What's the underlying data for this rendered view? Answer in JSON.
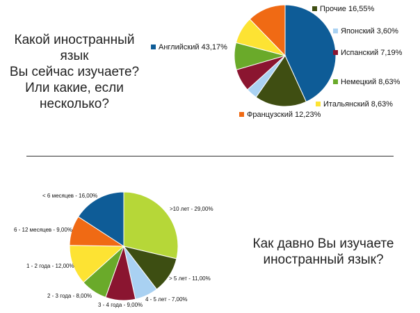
{
  "questions": {
    "language": [
      "Какой иностранный язык",
      "Вы сейчас изучаете?",
      "Или какие, если",
      "несколько?"
    ],
    "duration": [
      "Как давно Вы изучаете",
      "иностранный язык?"
    ]
  },
  "chart_data": [
    {
      "type": "pie",
      "labels": [
        "Английский",
        "Прочие",
        "Японский",
        "Испанский",
        "Немецкий",
        "Итальянский",
        "Французский"
      ],
      "values": [
        43.17,
        16.55,
        3.6,
        7.19,
        8.63,
        8.63,
        12.23
      ],
      "value_labels": [
        "43,17%",
        "16,55%",
        "3,60%",
        "7,19%",
        "8,63%",
        "8,63%",
        "12,23%"
      ],
      "colors": [
        "#0e5c97",
        "#3f4e12",
        "#aad2f2",
        "#8b1530",
        "#6aaa2a",
        "#fde333",
        "#f06a14"
      ]
    },
    {
      "type": "pie",
      "labels": [
        ">10 лет -",
        "> 5 лет -",
        "4 - 5 лет -",
        "3 - 4 года -",
        "2 - 3 года -",
        "1 - 2 года -",
        "6 - 12 месяцев -",
        "< 6 месяцев -"
      ],
      "values": [
        29.0,
        11.0,
        7.0,
        9.0,
        8.0,
        12.0,
        9.0,
        16.0
      ],
      "value_labels": [
        "29,00%",
        "11,00%",
        "7,00%",
        "9,00%",
        "8,00%",
        "12,00%",
        "9,00%",
        "16,00%"
      ],
      "colors": [
        "#b6d738",
        "#3d4e12",
        "#a9d1f2",
        "#8a1530",
        "#6aaa2a",
        "#fde333",
        "#f06a14",
        "#0e5c97"
      ]
    }
  ]
}
